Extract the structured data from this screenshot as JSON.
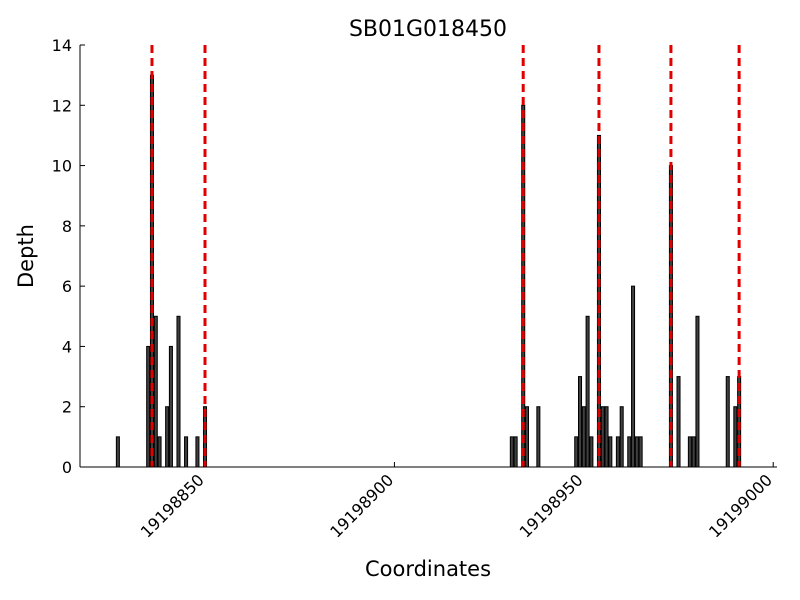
{
  "chart_data": {
    "type": "bar",
    "title": "SB01G018450",
    "xlabel": "Coordinates",
    "ylabel": "Depth",
    "x": [
      19198827,
      19198835,
      19198836,
      19198837,
      19198838,
      19198840,
      19198841,
      19198843,
      19198845,
      19198848,
      19198850,
      19198931,
      19198932,
      19198934,
      19198935,
      19198938,
      19198948,
      19198949,
      19198950,
      19198951,
      19198952,
      19198954,
      19198955,
      19198956,
      19198957,
      19198959,
      19198960,
      19198962,
      19198963,
      19198964,
      19198965,
      19198973,
      19198975,
      19198978,
      19198979,
      19198980,
      19198988,
      19198990,
      19198991
    ],
    "values": [
      1,
      4,
      13,
      5,
      1,
      2,
      4,
      5,
      1,
      1,
      2,
      1,
      1,
      12,
      2,
      2,
      1,
      3,
      2,
      5,
      1,
      11,
      2,
      2,
      1,
      1,
      2,
      1,
      6,
      1,
      1,
      10,
      3,
      1,
      1,
      5,
      3,
      2,
      3
    ],
    "color": "#404040",
    "vlines": [
      19198836,
      19198850,
      19198934,
      19198954,
      19198973,
      19198991
    ],
    "vline_color": "#e00000",
    "xlim": [
      19198817,
      19199001
    ],
    "xticks": [
      19198850,
      19198900,
      19198950,
      19199000
    ],
    "ylim": [
      0,
      14
    ],
    "yticks": [
      0,
      2,
      4,
      6,
      8,
      10,
      12,
      14
    ],
    "grid": false
  }
}
